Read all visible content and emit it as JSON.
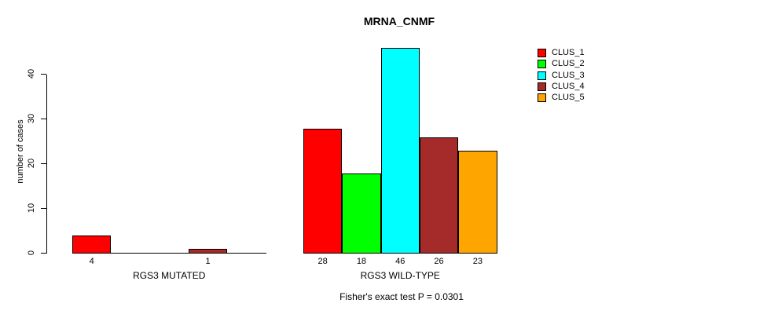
{
  "chart_data": {
    "type": "bar",
    "title": "MRNA_CNMF",
    "ylabel": "number of cases",
    "xlabel": "",
    "ylim": [
      0,
      46
    ],
    "yticks": [
      0,
      10,
      20,
      30,
      40
    ],
    "grid": false,
    "legend_position": "right",
    "series_names": [
      "CLUS_1",
      "CLUS_2",
      "CLUS_3",
      "CLUS_4",
      "CLUS_5"
    ],
    "series_colors": [
      "#FF0000",
      "#00FF00",
      "#00FFFF",
      "#A52A2A",
      "#FFA500"
    ],
    "groups": [
      {
        "label": "RGS3 MUTATED",
        "values": [
          4,
          0,
          0,
          1,
          0
        ],
        "bar_labels": [
          "4",
          "",
          "",
          "1",
          ""
        ]
      },
      {
        "label": "RGS3 WILD-TYPE",
        "values": [
          28,
          18,
          46,
          26,
          23
        ],
        "bar_labels": [
          "28",
          "18",
          "46",
          "26",
          "23"
        ]
      }
    ],
    "annotation": "Fisher's exact test P = 0.0301"
  }
}
